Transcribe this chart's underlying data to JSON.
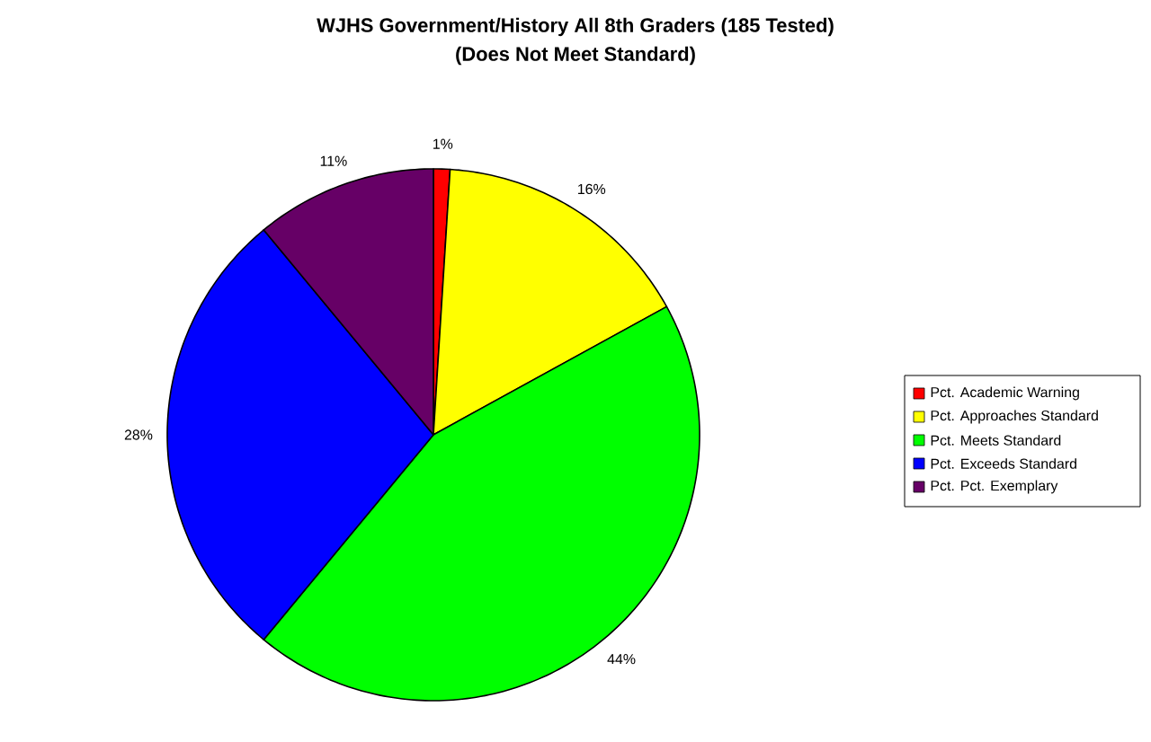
{
  "chart_data": {
    "type": "pie",
    "title": "WJHS Government/History All 8th Graders (185 Tested)",
    "subtitle": "(Does Not Meet Standard)",
    "categories": [
      "Pct. Academic Warning",
      "Pct. Approaches Standard",
      "Pct. Meets Standard",
      "Pct. Exceeds Standard",
      "Pct. Pct. Exemplary"
    ],
    "values": [
      1,
      16,
      44,
      28,
      11
    ],
    "colors": [
      "#ff0000",
      "#ffff00",
      "#00ff00",
      "#0000ff",
      "#660066"
    ],
    "value_labels": [
      "1%",
      "16%",
      "44%",
      "28%",
      "11%"
    ],
    "legend": "right"
  }
}
